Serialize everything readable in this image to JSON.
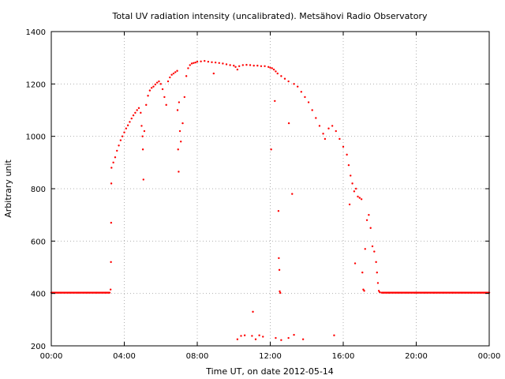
{
  "chart_data": {
    "type": "scatter",
    "title": "Total UV radiation intensity (uncalibrated). Metsähovi Radio Observatory",
    "xlabel": "Time UT, on date 2012-05-14",
    "ylabel": "Arbitrary unit",
    "x_unit": "hours UT",
    "xlim": [
      0,
      24
    ],
    "ylim": [
      200,
      1400
    ],
    "x_ticks": [
      {
        "value": 0,
        "label": "00:00"
      },
      {
        "value": 4,
        "label": "04:00"
      },
      {
        "value": 8,
        "label": "08:00"
      },
      {
        "value": 12,
        "label": "12:00"
      },
      {
        "value": 16,
        "label": "16:00"
      },
      {
        "value": 20,
        "label": "20:00"
      },
      {
        "value": 24,
        "label": "00:00"
      }
    ],
    "y_ticks": [
      {
        "value": 200,
        "label": "200"
      },
      {
        "value": 400,
        "label": "400"
      },
      {
        "value": 600,
        "label": "600"
      },
      {
        "value": 800,
        "label": "800"
      },
      {
        "value": 1000,
        "label": "1000"
      },
      {
        "value": 1200,
        "label": "1200"
      },
      {
        "value": 1400,
        "label": "1400"
      }
    ],
    "grid": true,
    "color": "#ff0000",
    "series": [
      {
        "name": "",
        "points": [
          [
            0.0,
            403
          ],
          [
            0.5,
            403
          ],
          [
            1.0,
            403
          ],
          [
            1.5,
            403
          ],
          [
            2.0,
            403
          ],
          [
            2.5,
            403
          ],
          [
            3.0,
            403
          ],
          [
            3.2,
            403
          ],
          [
            3.25,
            415
          ],
          [
            3.27,
            520
          ],
          [
            3.28,
            670
          ],
          [
            3.29,
            820
          ],
          [
            3.3,
            880
          ],
          [
            3.4,
            900
          ],
          [
            3.5,
            920
          ],
          [
            3.6,
            945
          ],
          [
            3.7,
            965
          ],
          [
            3.8,
            985
          ],
          [
            3.9,
            1000
          ],
          [
            4.0,
            1015
          ],
          [
            4.1,
            1030
          ],
          [
            4.2,
            1042
          ],
          [
            4.3,
            1055
          ],
          [
            4.4,
            1068
          ],
          [
            4.5,
            1080
          ],
          [
            4.6,
            1090
          ],
          [
            4.7,
            1100
          ],
          [
            4.8,
            1108
          ],
          [
            4.9,
            1090
          ],
          [
            4.95,
            1040
          ],
          [
            5.0,
            1000
          ],
          [
            5.02,
            950
          ],
          [
            5.05,
            835
          ],
          [
            5.1,
            1020
          ],
          [
            5.2,
            1120
          ],
          [
            5.3,
            1155
          ],
          [
            5.4,
            1175
          ],
          [
            5.5,
            1185
          ],
          [
            5.6,
            1190
          ],
          [
            5.7,
            1198
          ],
          [
            5.8,
            1205
          ],
          [
            5.9,
            1210
          ],
          [
            6.0,
            1200
          ],
          [
            6.1,
            1180
          ],
          [
            6.2,
            1150
          ],
          [
            6.3,
            1120
          ],
          [
            6.4,
            1210
          ],
          [
            6.5,
            1225
          ],
          [
            6.6,
            1235
          ],
          [
            6.7,
            1240
          ],
          [
            6.8,
            1245
          ],
          [
            6.9,
            1250
          ],
          [
            6.92,
            1100
          ],
          [
            6.95,
            950
          ],
          [
            6.98,
            865
          ],
          [
            7.0,
            1130
          ],
          [
            7.05,
            1020
          ],
          [
            7.1,
            980
          ],
          [
            7.2,
            1050
          ],
          [
            7.3,
            1150
          ],
          [
            7.4,
            1230
          ],
          [
            7.5,
            1260
          ],
          [
            7.6,
            1272
          ],
          [
            7.7,
            1278
          ],
          [
            7.8,
            1280
          ],
          [
            7.9,
            1282
          ],
          [
            8.0,
            1285
          ],
          [
            8.2,
            1286
          ],
          [
            8.4,
            1288
          ],
          [
            8.6,
            1285
          ],
          [
            8.8,
            1283
          ],
          [
            8.9,
            1240
          ],
          [
            9.0,
            1282
          ],
          [
            9.2,
            1280
          ],
          [
            9.4,
            1278
          ],
          [
            9.6,
            1275
          ],
          [
            9.8,
            1272
          ],
          [
            10.0,
            1270
          ],
          [
            10.1,
            1265
          ],
          [
            10.2,
            1255
          ],
          [
            10.3,
            1268
          ],
          [
            10.5,
            1272
          ],
          [
            10.7,
            1273
          ],
          [
            10.9,
            1272
          ],
          [
            11.1,
            1270
          ],
          [
            11.3,
            1270
          ],
          [
            11.5,
            1268
          ],
          [
            11.7,
            1268
          ],
          [
            11.9,
            1265
          ],
          [
            12.0,
            1262
          ],
          [
            12.05,
            950
          ],
          [
            12.1,
            1260
          ],
          [
            12.2,
            1255
          ],
          [
            12.25,
            1135
          ],
          [
            12.3,
            1248
          ],
          [
            12.4,
            1240
          ],
          [
            12.45,
            715
          ],
          [
            12.47,
            535
          ],
          [
            12.5,
            490
          ],
          [
            12.52,
            408
          ],
          [
            12.55,
            402
          ],
          [
            12.6,
            1230
          ],
          [
            12.8,
            1220
          ],
          [
            13.0,
            1210
          ],
          [
            13.02,
            1050
          ],
          [
            13.2,
            780
          ],
          [
            13.3,
            1200
          ],
          [
            13.5,
            1190
          ],
          [
            13.7,
            1170
          ],
          [
            13.9,
            1150
          ],
          [
            14.1,
            1130
          ],
          [
            14.3,
            1100
          ],
          [
            14.5,
            1070
          ],
          [
            14.7,
            1040
          ],
          [
            14.9,
            1010
          ],
          [
            15.0,
            990
          ],
          [
            15.2,
            1030
          ],
          [
            15.4,
            1040
          ],
          [
            15.6,
            1020
          ],
          [
            15.8,
            990
          ],
          [
            16.0,
            960
          ],
          [
            16.2,
            930
          ],
          [
            16.3,
            890
          ],
          [
            16.35,
            740
          ],
          [
            16.4,
            850
          ],
          [
            16.5,
            820
          ],
          [
            16.6,
            790
          ],
          [
            16.65,
            515
          ],
          [
            16.7,
            800
          ],
          [
            16.8,
            770
          ],
          [
            16.9,
            765
          ],
          [
            17.0,
            760
          ],
          [
            17.05,
            480
          ],
          [
            17.1,
            415
          ],
          [
            17.15,
            410
          ],
          [
            17.2,
            570
          ],
          [
            17.3,
            680
          ],
          [
            17.4,
            700
          ],
          [
            17.5,
            650
          ],
          [
            17.6,
            580
          ],
          [
            17.7,
            560
          ],
          [
            17.8,
            520
          ],
          [
            17.85,
            480
          ],
          [
            17.9,
            440
          ],
          [
            17.95,
            410
          ],
          [
            18.0,
            405
          ],
          [
            18.1,
            403
          ],
          [
            18.5,
            403
          ],
          [
            19.0,
            403
          ],
          [
            19.5,
            403
          ],
          [
            20.0,
            403
          ],
          [
            20.5,
            403
          ],
          [
            21.0,
            403
          ],
          [
            21.5,
            403
          ],
          [
            22.0,
            403
          ],
          [
            22.5,
            403
          ],
          [
            23.0,
            403
          ],
          [
            23.5,
            403
          ],
          [
            24.0,
            403
          ],
          [
            10.2,
            225
          ],
          [
            10.4,
            238
          ],
          [
            10.6,
            240
          ],
          [
            11.0,
            238
          ],
          [
            11.2,
            225
          ],
          [
            11.4,
            240
          ],
          [
            11.6,
            235
          ],
          [
            12.3,
            230
          ],
          [
            12.6,
            222
          ],
          [
            13.0,
            230
          ],
          [
            13.3,
            242
          ],
          [
            13.8,
            225
          ],
          [
            15.5,
            240
          ],
          [
            11.05,
            330
          ]
        ]
      }
    ]
  }
}
